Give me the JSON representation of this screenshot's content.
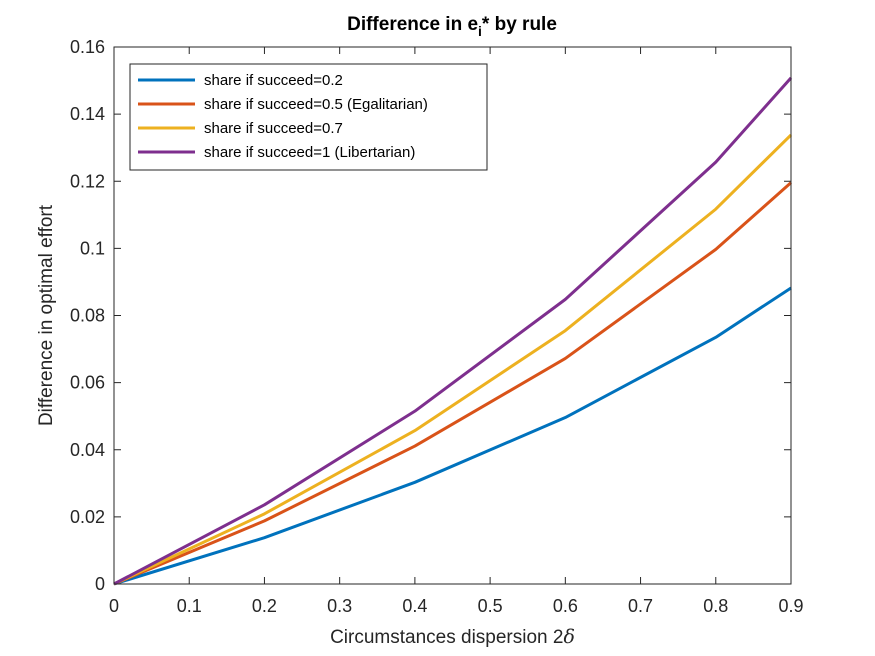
{
  "chart_data": {
    "type": "line",
    "title": {
      "prefix": "Difference in e",
      "subscript": "i",
      "suffix": "* by rule"
    },
    "xlabel": {
      "text": "Circumstances dispersion 2",
      "symbol": "δ"
    },
    "ylabel": "Difference in optimal effort",
    "xlim": [
      0,
      0.9
    ],
    "ylim": [
      0,
      0.16
    ],
    "xticks": [
      0,
      0.1,
      0.2,
      0.3,
      0.4,
      0.5,
      0.6,
      0.7,
      0.8,
      0.9
    ],
    "xtick_labels": [
      "0",
      "0.1",
      "0.2",
      "0.3",
      "0.4",
      "0.5",
      "0.6",
      "0.7",
      "0.8",
      "0.9"
    ],
    "yticks": [
      0,
      0.02,
      0.04,
      0.06,
      0.08,
      0.1,
      0.12,
      0.14,
      0.16
    ],
    "ytick_labels": [
      "0",
      "0.02",
      "0.04",
      "0.06",
      "0.08",
      "0.1",
      "0.12",
      "0.14",
      "0.16"
    ],
    "grid": false,
    "legend_position": "top-left",
    "x": [
      0,
      0.2,
      0.4,
      0.6,
      0.8,
      0.9
    ],
    "series": [
      {
        "name": "share if succeed=0.2",
        "color": "#0072BD",
        "values": [
          0,
          0.0138,
          0.0303,
          0.0496,
          0.0735,
          0.0882
        ]
      },
      {
        "name": "share if succeed=0.5 (Egalitarian)",
        "color": "#D95319",
        "values": [
          0,
          0.0188,
          0.0411,
          0.0672,
          0.0997,
          0.1196
        ]
      },
      {
        "name": "share if succeed=0.7",
        "color": "#EDB120",
        "values": [
          0,
          0.0209,
          0.0457,
          0.0755,
          0.1117,
          0.1338
        ]
      },
      {
        "name": "share if succeed=1 (Libertarian)",
        "color": "#7E2F8E",
        "values": [
          0,
          0.0236,
          0.0515,
          0.0848,
          0.1257,
          0.1508
        ]
      }
    ]
  }
}
